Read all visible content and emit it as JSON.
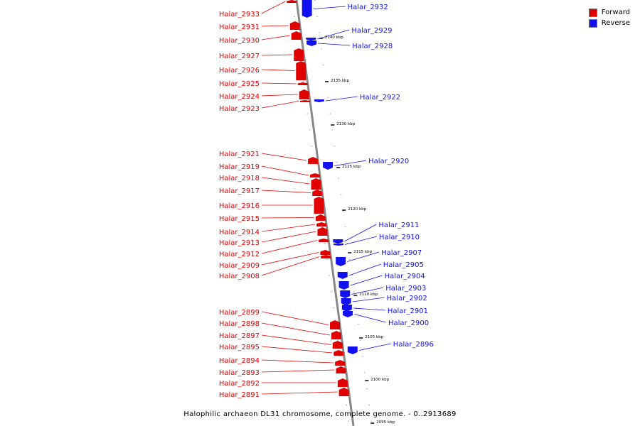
{
  "colors": {
    "forward": "#e00000",
    "reverse": "#1010f0",
    "axis": "#888888"
  },
  "legend": {
    "forward": "Forward",
    "reverse": "Reverse"
  },
  "caption": "Halophilic archaeon DL31 chromosome, complete genome. - 0..2913689",
  "scale_ticks": [
    "2140 kbp",
    "2135 kbp",
    "2130 kbp",
    "2125 kbp",
    "2120 kbp",
    "2115 kbp",
    "2110 kbp",
    "2105 kbp",
    "2100 kbp",
    "2095 kbp"
  ],
  "genes_forward": [
    "Halar_2933",
    "Halar_2931",
    "Halar_2930",
    "Halar_2927",
    "Halar_2926",
    "Halar_2925",
    "Halar_2924",
    "Halar_2923",
    "Halar_2921",
    "Halar_2919",
    "Halar_2918",
    "Halar_2917",
    "Halar_2916",
    "Halar_2915",
    "Halar_2914",
    "Halar_2913",
    "Halar_2912",
    "Halar_2909",
    "Halar_2908",
    "Halar_2899",
    "Halar_2898",
    "Halar_2897",
    "Halar_2895",
    "Halar_2894",
    "Halar_2893",
    "Halar_2892",
    "Halar_2891"
  ],
  "genes_reverse": [
    "Halar_2932",
    "Halar_2929",
    "Halar_2928",
    "Halar_2922",
    "Halar_2920",
    "Halar_2911",
    "Halar_2910",
    "Halar_2907",
    "Halar_2905",
    "Halar_2904",
    "Halar_2903",
    "Halar_2902",
    "Halar_2901",
    "Halar_2900",
    "Halar_2896"
  ]
}
